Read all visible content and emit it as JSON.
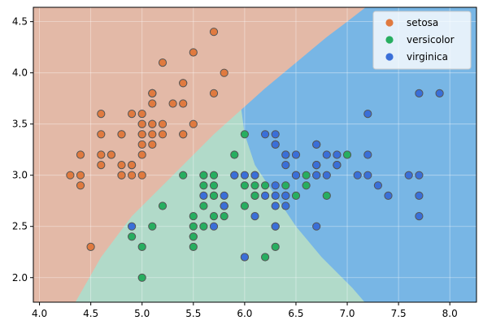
{
  "chart_data": {
    "type": "scatter",
    "title": "",
    "xlabel": "",
    "ylabel": "",
    "xlim": [
      3.94,
      8.26
    ],
    "ylim": [
      1.76,
      4.64
    ],
    "xticks": [
      4.0,
      4.5,
      5.0,
      5.5,
      6.0,
      6.5,
      7.0,
      7.5,
      8.0
    ],
    "xtick_labels": [
      "4.0",
      "4.5",
      "5.0",
      "5.5",
      "6.0",
      "6.5",
      "7.0",
      "7.5",
      "8.0"
    ],
    "yticks": [
      2.0,
      2.5,
      3.0,
      3.5,
      4.0,
      4.5
    ],
    "ytick_labels": [
      "2.0",
      "2.5",
      "3.0",
      "3.5",
      "4.0",
      "4.5"
    ],
    "grid": true,
    "legend_position": "top-right",
    "decision_regions": true,
    "series": [
      {
        "name": "setosa",
        "color": "#e07a3f",
        "region_color": "#e3b9a7",
        "points": [
          [
            5.1,
            3.5
          ],
          [
            4.9,
            3.0
          ],
          [
            4.7,
            3.2
          ],
          [
            4.6,
            3.1
          ],
          [
            5.0,
            3.6
          ],
          [
            5.4,
            3.9
          ],
          [
            4.6,
            3.4
          ],
          [
            5.0,
            3.4
          ],
          [
            4.4,
            2.9
          ],
          [
            4.9,
            3.1
          ],
          [
            5.4,
            3.7
          ],
          [
            4.8,
            3.4
          ],
          [
            4.8,
            3.0
          ],
          [
            4.3,
            3.0
          ],
          [
            5.8,
            4.0
          ],
          [
            5.7,
            4.4
          ],
          [
            5.4,
            3.9
          ],
          [
            5.1,
            3.5
          ],
          [
            5.7,
            3.8
          ],
          [
            5.1,
            3.8
          ],
          [
            5.4,
            3.4
          ],
          [
            5.1,
            3.7
          ],
          [
            4.6,
            3.6
          ],
          [
            5.1,
            3.3
          ],
          [
            4.8,
            3.4
          ],
          [
            5.0,
            3.0
          ],
          [
            5.0,
            3.4
          ],
          [
            5.2,
            3.5
          ],
          [
            5.2,
            3.4
          ],
          [
            4.7,
            3.2
          ],
          [
            4.8,
            3.1
          ],
          [
            5.4,
            3.4
          ],
          [
            5.2,
            4.1
          ],
          [
            5.5,
            4.2
          ],
          [
            4.9,
            3.1
          ],
          [
            5.0,
            3.2
          ],
          [
            5.5,
            3.5
          ],
          [
            4.9,
            3.6
          ],
          [
            4.4,
            3.0
          ],
          [
            5.1,
            3.4
          ],
          [
            5.0,
            3.5
          ],
          [
            4.5,
            2.3
          ],
          [
            4.4,
            3.2
          ],
          [
            5.0,
            3.5
          ],
          [
            5.1,
            3.8
          ],
          [
            4.8,
            3.0
          ],
          [
            5.1,
            3.8
          ],
          [
            4.6,
            3.2
          ],
          [
            5.3,
            3.7
          ],
          [
            5.0,
            3.3
          ]
        ]
      },
      {
        "name": "versicolor",
        "color": "#27ae60",
        "region_color": "#b1dac9",
        "points": [
          [
            7.0,
            3.2
          ],
          [
            6.4,
            3.2
          ],
          [
            6.9,
            3.1
          ],
          [
            5.5,
            2.3
          ],
          [
            6.5,
            2.8
          ],
          [
            5.7,
            2.8
          ],
          [
            6.3,
            3.3
          ],
          [
            4.9,
            2.4
          ],
          [
            6.6,
            2.9
          ],
          [
            5.2,
            2.7
          ],
          [
            5.0,
            2.0
          ],
          [
            5.9,
            3.0
          ],
          [
            6.0,
            2.2
          ],
          [
            6.1,
            2.9
          ],
          [
            5.6,
            2.9
          ],
          [
            6.7,
            3.1
          ],
          [
            5.6,
            3.0
          ],
          [
            5.8,
            2.7
          ],
          [
            6.2,
            2.2
          ],
          [
            5.6,
            2.5
          ],
          [
            5.9,
            3.2
          ],
          [
            6.1,
            2.8
          ],
          [
            6.3,
            2.5
          ],
          [
            6.1,
            2.8
          ],
          [
            6.4,
            2.9
          ],
          [
            6.6,
            3.0
          ],
          [
            6.8,
            2.8
          ],
          [
            6.7,
            3.0
          ],
          [
            6.0,
            2.9
          ],
          [
            5.7,
            2.6
          ],
          [
            5.5,
            2.4
          ],
          [
            5.5,
            2.4
          ],
          [
            5.8,
            2.7
          ],
          [
            6.0,
            2.7
          ],
          [
            5.4,
            3.0
          ],
          [
            6.0,
            3.4
          ],
          [
            6.7,
            3.1
          ],
          [
            6.3,
            2.3
          ],
          [
            5.6,
            3.0
          ],
          [
            5.5,
            2.5
          ],
          [
            5.5,
            2.6
          ],
          [
            6.1,
            3.0
          ],
          [
            5.8,
            2.6
          ],
          [
            5.0,
            2.3
          ],
          [
            5.6,
            2.7
          ],
          [
            5.7,
            3.0
          ],
          [
            5.7,
            2.9
          ],
          [
            6.2,
            2.9
          ],
          [
            5.1,
            2.5
          ],
          [
            5.7,
            2.8
          ]
        ]
      },
      {
        "name": "virginica",
        "color": "#3a6fd8",
        "region_color": "#78b6e5",
        "points": [
          [
            6.3,
            3.3
          ],
          [
            5.8,
            2.7
          ],
          [
            7.1,
            3.0
          ],
          [
            6.3,
            2.9
          ],
          [
            6.5,
            3.0
          ],
          [
            7.6,
            3.0
          ],
          [
            4.9,
            2.5
          ],
          [
            7.3,
            2.9
          ],
          [
            6.7,
            2.5
          ],
          [
            7.2,
            3.6
          ],
          [
            6.5,
            3.2
          ],
          [
            6.4,
            2.7
          ],
          [
            6.8,
            3.0
          ],
          [
            5.7,
            2.5
          ],
          [
            5.8,
            2.8
          ],
          [
            6.4,
            3.2
          ],
          [
            6.5,
            3.0
          ],
          [
            7.7,
            3.8
          ],
          [
            7.7,
            2.6
          ],
          [
            6.0,
            2.2
          ],
          [
            6.9,
            3.2
          ],
          [
            5.6,
            2.8
          ],
          [
            7.7,
            2.8
          ],
          [
            6.3,
            2.7
          ],
          [
            6.7,
            3.3
          ],
          [
            7.2,
            3.2
          ],
          [
            6.2,
            2.8
          ],
          [
            6.1,
            3.0
          ],
          [
            6.4,
            2.8
          ],
          [
            7.2,
            3.0
          ],
          [
            7.4,
            2.8
          ],
          [
            7.9,
            3.8
          ],
          [
            6.4,
            2.8
          ],
          [
            6.3,
            2.8
          ],
          [
            6.1,
            2.6
          ],
          [
            7.7,
            3.0
          ],
          [
            6.3,
            3.4
          ],
          [
            6.4,
            3.1
          ],
          [
            6.0,
            3.0
          ],
          [
            6.9,
            3.1
          ],
          [
            6.7,
            3.1
          ],
          [
            6.9,
            3.1
          ],
          [
            5.8,
            2.7
          ],
          [
            6.8,
            3.2
          ],
          [
            6.7,
            3.3
          ],
          [
            6.7,
            3.0
          ],
          [
            6.3,
            2.5
          ],
          [
            6.5,
            3.0
          ],
          [
            6.2,
            3.4
          ],
          [
            5.9,
            3.0
          ]
        ]
      }
    ]
  }
}
